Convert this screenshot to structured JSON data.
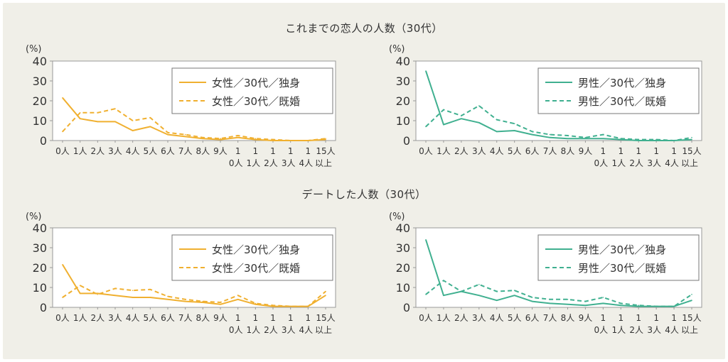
{
  "sections": [
    {
      "title": "これまでの恋人の人数（30代）"
    },
    {
      "title": "デートした人数（30代）"
    }
  ],
  "colors": {
    "female": "#f0b030",
    "male": "#40b090"
  },
  "chart_data": [
    {
      "type": "line",
      "title": "",
      "ylabel": "(%)",
      "ylim": [
        0,
        40
      ],
      "yticks": [
        0,
        10,
        20,
        30,
        40
      ],
      "legend": "top-right",
      "grid": false,
      "categories": [
        "0人",
        "1人",
        "2人",
        "3人",
        "4人",
        "5人",
        "6人",
        "7人",
        "8人",
        "9人",
        "10人",
        "11人",
        "12人",
        "13人",
        "14人",
        "15人以上"
      ],
      "series": [
        {
          "name": "女性／30代／独身",
          "style": "solid",
          "color": "female",
          "values": [
            21.5,
            11,
            9.5,
            9.5,
            5,
            7,
            3,
            2,
            1,
            0.5,
            1.5,
            0.5,
            0,
            0,
            0,
            0.5
          ]
        },
        {
          "name": "女性／30代／既婚",
          "style": "dashed",
          "color": "female",
          "values": [
            4.5,
            14,
            14,
            16,
            10,
            11.5,
            4,
            3,
            1.5,
            1,
            2.5,
            1,
            0.5,
            0,
            0,
            1
          ]
        }
      ]
    },
    {
      "type": "line",
      "title": "",
      "ylabel": "(%)",
      "ylim": [
        0,
        40
      ],
      "yticks": [
        0,
        10,
        20,
        30,
        40
      ],
      "legend": "top-right",
      "grid": false,
      "categories": [
        "0人",
        "1人",
        "2人",
        "3人",
        "4人",
        "5人",
        "6人",
        "7人",
        "8人",
        "9人",
        "10人",
        "11人",
        "12人",
        "13人",
        "14人",
        "15人以上"
      ],
      "series": [
        {
          "name": "男性／30代／独身",
          "style": "solid",
          "color": "male",
          "values": [
            35,
            8,
            11,
            9,
            4.5,
            5,
            3,
            1.5,
            1,
            1,
            1,
            0.5,
            0,
            0,
            0,
            0.5
          ]
        },
        {
          "name": "男性／30代／既婚",
          "style": "dashed",
          "color": "male",
          "values": [
            7,
            15.5,
            12.5,
            17.5,
            10.5,
            8.5,
            4.5,
            3,
            2.5,
            1.5,
            3,
            1,
            0.5,
            0.5,
            0,
            1.5
          ]
        }
      ]
    },
    {
      "type": "line",
      "title": "",
      "ylabel": "(%)",
      "ylim": [
        0,
        40
      ],
      "yticks": [
        0,
        10,
        20,
        30,
        40
      ],
      "legend": "top-right",
      "grid": false,
      "categories": [
        "0人",
        "1人",
        "2人",
        "3人",
        "4人",
        "5人",
        "6人",
        "7人",
        "8人",
        "9人",
        "10人",
        "11人",
        "12人",
        "13人",
        "14人",
        "15人以上"
      ],
      "series": [
        {
          "name": "女性／30代／独身",
          "style": "solid",
          "color": "female",
          "values": [
            21.5,
            7,
            7,
            6,
            5,
            5,
            4,
            3,
            2.5,
            1.5,
            4,
            1.5,
            0.5,
            0.5,
            0.5,
            6
          ]
        },
        {
          "name": "女性／30代／既婚",
          "style": "dashed",
          "color": "female",
          "values": [
            5,
            11,
            6.5,
            9.5,
            8.5,
            9,
            5.5,
            4,
            3,
            2.5,
            6,
            2,
            1,
            0.5,
            0.5,
            8
          ]
        }
      ]
    },
    {
      "type": "line",
      "title": "",
      "ylabel": "(%)",
      "ylim": [
        0,
        40
      ],
      "yticks": [
        0,
        10,
        20,
        30,
        40
      ],
      "legend": "top-right",
      "grid": false,
      "categories": [
        "0人",
        "1人",
        "2人",
        "3人",
        "4人",
        "5人",
        "6人",
        "7人",
        "8人",
        "9人",
        "10人",
        "11人",
        "12人",
        "13人",
        "14人",
        "15人以上"
      ],
      "series": [
        {
          "name": "男性／30代／独身",
          "style": "solid",
          "color": "male",
          "values": [
            34,
            6,
            8,
            6,
            3.5,
            6,
            3,
            2,
            1.5,
            1,
            2,
            1,
            0.5,
            0.5,
            0.5,
            3.5
          ]
        },
        {
          "name": "男性／30代／既婚",
          "style": "dashed",
          "color": "male",
          "values": [
            6.5,
            13.5,
            8,
            11.5,
            8,
            8.5,
            5,
            4,
            4,
            3,
            5,
            2,
            1,
            0.5,
            0.5,
            6.5
          ]
        }
      ]
    }
  ]
}
